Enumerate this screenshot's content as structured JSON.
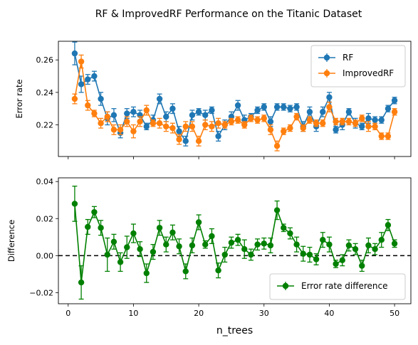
{
  "figure": {
    "title": "RF & ImprovedRF Performance on the Titanic Dataset"
  },
  "chart_data": [
    {
      "type": "line",
      "ylabel": "Error rate",
      "xlim": [
        -1.5,
        52.5
      ],
      "ylim": [
        0.2005,
        0.2715
      ],
      "yticks": [
        0.22,
        0.24,
        0.26
      ],
      "xticks": [
        0,
        10,
        20,
        30,
        40,
        50
      ],
      "show_xtick_labels": false,
      "legend_position": "upper right",
      "x": [
        1,
        2,
        3,
        4,
        5,
        6,
        7,
        8,
        9,
        10,
        11,
        12,
        13,
        14,
        15,
        16,
        17,
        18,
        19,
        20,
        21,
        22,
        23,
        24,
        25,
        26,
        27,
        28,
        29,
        30,
        31,
        32,
        33,
        34,
        35,
        36,
        37,
        38,
        39,
        40,
        41,
        42,
        43,
        44,
        45,
        46,
        47,
        48,
        49,
        50
      ],
      "series": [
        {
          "name": "RF",
          "color": "#1f77b4",
          "values": [
            0.264,
            0.245,
            0.248,
            0.25,
            0.236,
            0.224,
            0.226,
            0.215,
            0.227,
            0.228,
            0.226,
            0.219,
            0.223,
            0.236,
            0.225,
            0.23,
            0.216,
            0.21,
            0.226,
            0.228,
            0.226,
            0.229,
            0.213,
            0.22,
            0.225,
            0.232,
            0.223,
            0.225,
            0.229,
            0.231,
            0.222,
            0.231,
            0.231,
            0.23,
            0.231,
            0.219,
            0.228,
            0.219,
            0.228,
            0.237,
            0.217,
            0.22,
            0.228,
            0.221,
            0.219,
            0.224,
            0.223,
            0.223,
            0.23,
            0.235
          ],
          "errors": [
            0.007,
            0.005,
            0.003,
            0.003,
            0.004,
            0.004,
            0.004,
            0.003,
            0.003,
            0.003,
            0.003,
            0.002,
            0.003,
            0.003,
            0.003,
            0.003,
            0.003,
            0.003,
            0.003,
            0.002,
            0.003,
            0.002,
            0.003,
            0.003,
            0.003,
            0.003,
            0.003,
            0.002,
            0.002,
            0.002,
            0.003,
            0.002,
            0.002,
            0.002,
            0.002,
            0.003,
            0.003,
            0.003,
            0.003,
            0.003,
            0.002,
            0.003,
            0.002,
            0.003,
            0.002,
            0.003,
            0.002,
            0.002,
            0.002,
            0.002
          ]
        },
        {
          "name": "ImprovedRF",
          "color": "#ff7f0e",
          "values": [
            0.236,
            0.259,
            0.232,
            0.227,
            0.221,
            0.225,
            0.217,
            0.217,
            0.222,
            0.216,
            0.222,
            0.229,
            0.221,
            0.221,
            0.219,
            0.218,
            0.211,
            0.219,
            0.219,
            0.21,
            0.22,
            0.219,
            0.221,
            0.22,
            0.222,
            0.223,
            0.22,
            0.224,
            0.223,
            0.224,
            0.217,
            0.207,
            0.216,
            0.218,
            0.225,
            0.218,
            0.223,
            0.221,
            0.221,
            0.231,
            0.222,
            0.222,
            0.222,
            0.221,
            0.224,
            0.219,
            0.219,
            0.213,
            0.213,
            0.228
          ],
          "errors": [
            0.003,
            0.004,
            0.003,
            0.002,
            0.003,
            0.003,
            0.003,
            0.003,
            0.003,
            0.004,
            0.003,
            0.003,
            0.002,
            0.003,
            0.003,
            0.003,
            0.003,
            0.003,
            0.003,
            0.003,
            0.003,
            0.003,
            0.003,
            0.002,
            0.002,
            0.002,
            0.002,
            0.002,
            0.002,
            0.002,
            0.003,
            0.003,
            0.002,
            0.002,
            0.002,
            0.002,
            0.002,
            0.002,
            0.002,
            0.003,
            0.002,
            0.002,
            0.002,
            0.002,
            0.002,
            0.003,
            0.002,
            0.002,
            0.002,
            0.002
          ]
        }
      ]
    },
    {
      "type": "line",
      "xlabel": "n_trees",
      "ylabel": "Difference",
      "xlim": [
        -1.5,
        52.5
      ],
      "ylim": [
        -0.026,
        0.042
      ],
      "yticks": [
        -0.02,
        0.0,
        0.02,
        0.04
      ],
      "ytick_labels": [
        "−0.02",
        "0.00",
        "0.02",
        "0.04"
      ],
      "xticks": [
        0,
        10,
        20,
        30,
        40,
        50
      ],
      "xtick_labels": [
        "0",
        "10",
        "20",
        "30",
        "40",
        "50"
      ],
      "reference_line": {
        "y": 0,
        "style": "dashed",
        "color": "#000000"
      },
      "legend_position": "lower right",
      "x": [
        1,
        2,
        3,
        4,
        5,
        6,
        7,
        8,
        9,
        10,
        11,
        12,
        13,
        14,
        15,
        16,
        17,
        18,
        19,
        20,
        21,
        22,
        23,
        24,
        25,
        26,
        27,
        28,
        29,
        30,
        31,
        32,
        33,
        34,
        35,
        36,
        37,
        38,
        39,
        40,
        41,
        42,
        43,
        44,
        45,
        46,
        47,
        48,
        49,
        50
      ],
      "series": [
        {
          "name": "Error rate difference",
          "color": "#008000",
          "values": [
            0.028,
            -0.0145,
            0.0155,
            0.0235,
            0.015,
            0.0005,
            0.0075,
            -0.0035,
            0.0045,
            0.012,
            0.0035,
            -0.0095,
            0.002,
            0.015,
            0.006,
            0.0125,
            0.005,
            -0.0085,
            0.0055,
            0.018,
            0.006,
            0.0105,
            -0.008,
            0.0005,
            0.007,
            0.0085,
            0.0035,
            0.0005,
            0.006,
            0.0065,
            0.0055,
            0.0245,
            0.015,
            0.012,
            0.006,
            0.001,
            0.0005,
            -0.002,
            0.0085,
            0.006,
            -0.0045,
            -0.0025,
            0.0055,
            0.0035,
            -0.0055,
            0.0055,
            0.0035,
            0.0085,
            0.0165,
            0.0065
          ],
          "errors": [
            0.0095,
            0.009,
            0.004,
            0.003,
            0.004,
            0.009,
            0.004,
            0.005,
            0.006,
            0.005,
            0.004,
            0.005,
            0.004,
            0.004,
            0.004,
            0.004,
            0.004,
            0.004,
            0.004,
            0.004,
            0.002,
            0.004,
            0.004,
            0.004,
            0.003,
            0.003,
            0.005,
            0.003,
            0.003,
            0.003,
            0.004,
            0.005,
            0.002,
            0.003,
            0.004,
            0.004,
            0.004,
            0.003,
            0.004,
            0.004,
            0.002,
            0.003,
            0.003,
            0.003,
            0.003,
            0.004,
            0.003,
            0.004,
            0.003,
            0.002
          ]
        }
      ]
    }
  ]
}
